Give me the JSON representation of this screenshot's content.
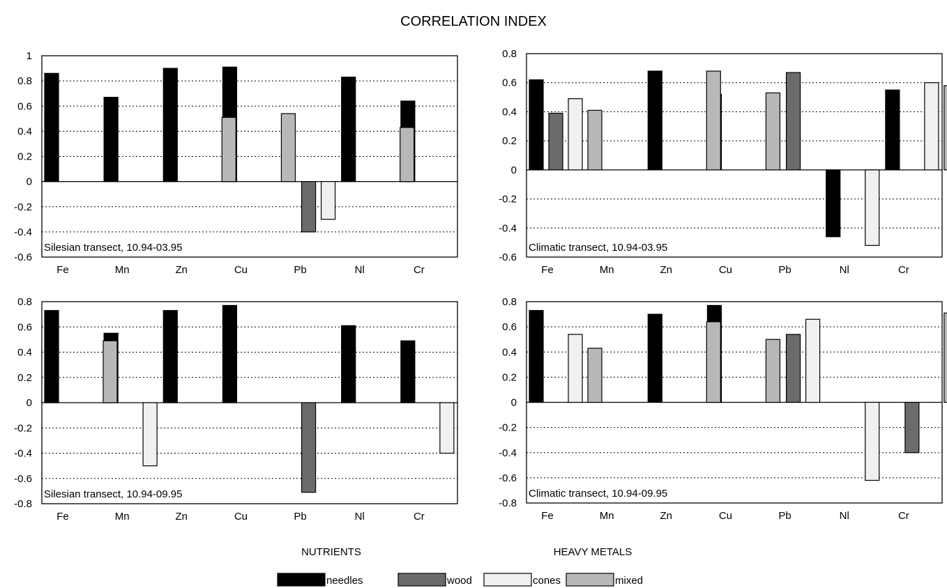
{
  "title": "CORRELATION INDEX",
  "group_labels": [
    "NUTRIENTS",
    "HEAVY METALS"
  ],
  "legend": [
    {
      "name": "needles",
      "color": "#000000"
    },
    {
      "name": "wood",
      "color": "#6b6b6b"
    },
    {
      "name": "cones",
      "color": "#f0f0f0"
    },
    {
      "name": "mixed",
      "color": "#b8b8b8"
    }
  ],
  "chart_data": [
    {
      "type": "bar",
      "annotation": "Silesian transect, 10.94-03.95",
      "categories": [
        "Fe",
        "Mn",
        "Zn",
        "Cu",
        "Pb",
        "Nl",
        "Cr"
      ],
      "ylim": [
        -0.6,
        1
      ],
      "yticks": [
        -0.6,
        -0.4,
        -0.2,
        0,
        0.2,
        0.4,
        0.6,
        0.8,
        1
      ],
      "ytick_labels": [
        "-0.6",
        "-0.4",
        "-0.2",
        "0",
        "0.2",
        "0.4",
        "0.6",
        "0.8",
        "1"
      ],
      "grid": "dotted horizontal",
      "series": [
        {
          "name": "needles",
          "values": [
            0.86,
            0.67,
            0.9,
            0.91,
            null,
            0.83,
            0.64
          ]
        },
        {
          "name": "wood",
          "values": [
            null,
            null,
            null,
            null,
            -0.4,
            null,
            null
          ]
        },
        {
          "name": "cones",
          "values": [
            null,
            null,
            null,
            null,
            -0.3,
            null,
            null
          ]
        },
        {
          "name": "mixed",
          "values": [
            null,
            null,
            0.51,
            0.54,
            null,
            0.43,
            null
          ]
        }
      ]
    },
    {
      "type": "bar",
      "annotation": "Climatic transect, 10.94-03.95",
      "categories": [
        "Fe",
        "Mn",
        "Zn",
        "Cu",
        "Pb",
        "Nl",
        "Cr"
      ],
      "ylim": [
        -0.6,
        0.8
      ],
      "yticks": [
        -0.6,
        -0.4,
        -0.2,
        0,
        0.2,
        0.4,
        0.6,
        0.8
      ],
      "ytick_labels": [
        "-0.6",
        "-0.4",
        "-0.2",
        "0",
        "0.2",
        "0.4",
        "0.6",
        "0.8"
      ],
      "grid": "dotted horizontal",
      "series": [
        {
          "name": "needles",
          "values": [
            0.62,
            null,
            0.68,
            0.52,
            null,
            -0.46,
            0.55
          ]
        },
        {
          "name": "wood",
          "values": [
            0.39,
            null,
            null,
            null,
            0.67,
            null,
            null
          ]
        },
        {
          "name": "cones",
          "values": [
            0.49,
            null,
            null,
            null,
            null,
            -0.52,
            0.6
          ]
        },
        {
          "name": "mixed",
          "values": [
            0.41,
            null,
            0.68,
            0.53,
            null,
            null,
            0.58
          ]
        }
      ]
    },
    {
      "type": "bar",
      "annotation": "Silesian transect, 10.94-09.95",
      "categories": [
        "Fe",
        "Mn",
        "Zn",
        "Cu",
        "Pb",
        "Nl",
        "Cr"
      ],
      "ylim": [
        -0.8,
        0.8
      ],
      "yticks": [
        -0.8,
        -0.6,
        -0.4,
        -0.2,
        0,
        0.2,
        0.4,
        0.6,
        0.8
      ],
      "ytick_labels": [
        "-0.8",
        "-0.6",
        "-0.4",
        "-0.2",
        "0",
        "0.2",
        "0.4",
        "0.6",
        "0.8"
      ],
      "grid": "dotted horizontal",
      "series": [
        {
          "name": "needles",
          "values": [
            0.73,
            0.55,
            0.73,
            0.77,
            null,
            0.61,
            0.49
          ]
        },
        {
          "name": "wood",
          "values": [
            null,
            null,
            null,
            null,
            -0.71,
            null,
            null
          ]
        },
        {
          "name": "cones",
          "values": [
            null,
            -0.5,
            null,
            null,
            null,
            null,
            -0.4
          ]
        },
        {
          "name": "mixed",
          "values": [
            0.49,
            null,
            null,
            null,
            null,
            null,
            null
          ]
        }
      ]
    },
    {
      "type": "bar",
      "annotation": "Climatic transect, 10.94-09.95",
      "categories": [
        "Fe",
        "Mn",
        "Zn",
        "Cu",
        "Pb",
        "Nl",
        "Cr"
      ],
      "ylim": [
        -0.8,
        0.8
      ],
      "yticks": [
        -0.8,
        -0.6,
        -0.4,
        -0.2,
        0,
        0.2,
        0.4,
        0.6,
        0.8
      ],
      "ytick_labels": [
        "-0.8",
        "-0.6",
        "-0.4",
        "-0.2",
        "0",
        "0.2",
        "0.4",
        "0.6",
        "0.8"
      ],
      "grid": "dotted horizontal",
      "series": [
        {
          "name": "needles",
          "values": [
            0.73,
            null,
            0.7,
            0.77,
            null,
            null,
            null
          ]
        },
        {
          "name": "wood",
          "values": [
            null,
            null,
            null,
            null,
            0.54,
            null,
            -0.4
          ]
        },
        {
          "name": "cones",
          "values": [
            0.54,
            null,
            null,
            null,
            0.66,
            -0.62,
            null
          ]
        },
        {
          "name": "mixed",
          "values": [
            0.43,
            null,
            0.64,
            0.5,
            null,
            null,
            0.71
          ]
        }
      ]
    }
  ]
}
